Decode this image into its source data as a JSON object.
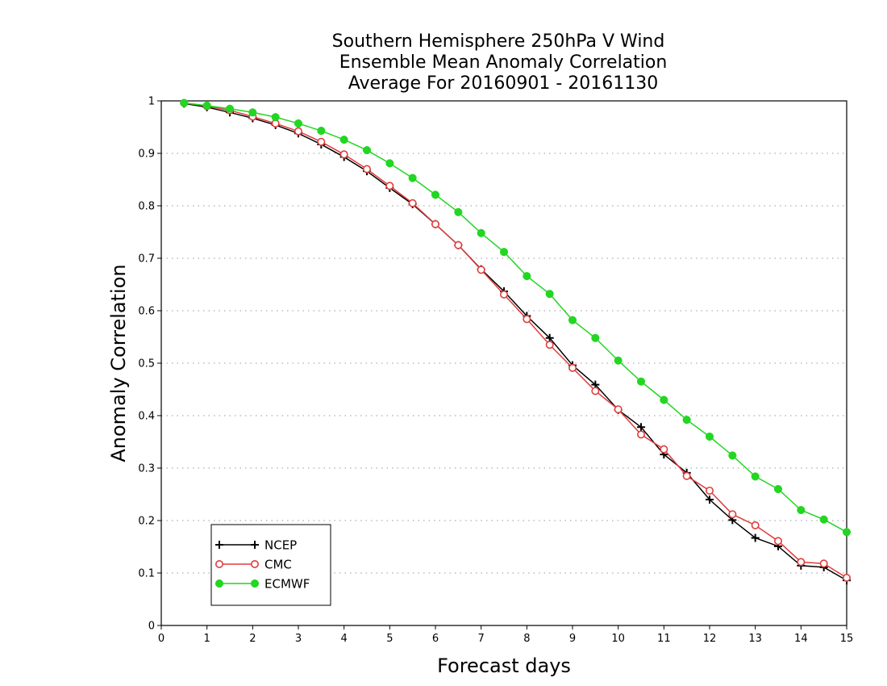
{
  "chart_data": {
    "type": "line",
    "title_lines": [
      "Southern Hemisphere 250hPa V Wind",
      "Ensemble Mean Anomaly Correlation",
      "Average For 20160901 - 20161130"
    ],
    "xlabel": "Forecast days",
    "ylabel": "Anomaly Correlation",
    "xlim": [
      0,
      15
    ],
    "ylim": [
      0,
      1
    ],
    "x_ticks": [
      "0",
      "1",
      "2",
      "3",
      "4",
      "5",
      "6",
      "7",
      "8",
      "9",
      "10",
      "11",
      "12",
      "13",
      "14",
      "15"
    ],
    "y_ticks": [
      "0",
      "0.1",
      "0.2",
      "0.3",
      "0.4",
      "0.5",
      "0.6",
      "0.7",
      "0.8",
      "0.9",
      "1"
    ],
    "grid": "dotted horizontal",
    "legend_position": "bottom-left",
    "x": [
      0.5,
      1,
      1.5,
      2,
      2.5,
      3,
      3.5,
      4,
      4.5,
      5,
      5.5,
      6,
      6.5,
      7,
      7.5,
      8,
      8.5,
      9,
      9.5,
      10,
      10.5,
      11,
      11.5,
      12,
      12.5,
      13,
      13.5,
      14,
      14.5,
      15
    ],
    "series": [
      {
        "name": "NCEP",
        "color": "#000000",
        "marker": "plus",
        "values": [
          0.995,
          0.988,
          0.978,
          0.967,
          0.954,
          0.938,
          0.917,
          0.893,
          0.866,
          0.834,
          0.803,
          0.765,
          0.725,
          0.679,
          0.637,
          0.59,
          0.548,
          0.496,
          0.459,
          0.411,
          0.378,
          0.326,
          0.291,
          0.24,
          0.201,
          0.167,
          0.151,
          0.114,
          0.111,
          0.086
        ]
      },
      {
        "name": "CMC",
        "color": "#e03c3c",
        "marker": "open-circle",
        "values": [
          0.996,
          0.99,
          0.982,
          0.97,
          0.957,
          0.942,
          0.922,
          0.898,
          0.87,
          0.838,
          0.805,
          0.765,
          0.725,
          0.678,
          0.631,
          0.584,
          0.535,
          0.491,
          0.447,
          0.412,
          0.364,
          0.336,
          0.285,
          0.257,
          0.212,
          0.191,
          0.161,
          0.121,
          0.118,
          0.091
        ]
      },
      {
        "name": "ECMWF",
        "color": "#22d622",
        "marker": "filled-circle",
        "values": [
          0.996,
          0.991,
          0.985,
          0.978,
          0.969,
          0.957,
          0.943,
          0.926,
          0.906,
          0.881,
          0.853,
          0.821,
          0.788,
          0.748,
          0.712,
          0.666,
          0.632,
          0.582,
          0.548,
          0.505,
          0.465,
          0.43,
          0.392,
          0.36,
          0.324,
          0.284,
          0.26,
          0.22,
          0.202,
          0.178
        ]
      }
    ]
  }
}
